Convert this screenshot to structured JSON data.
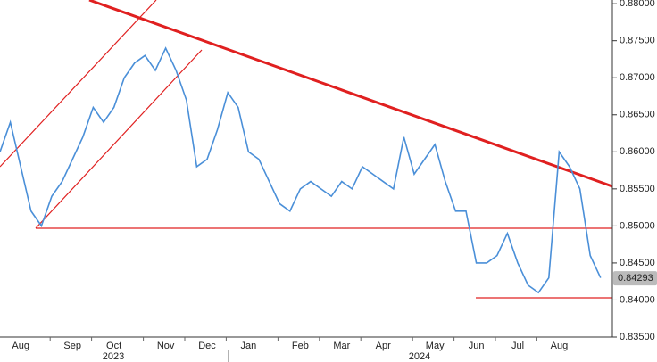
{
  "chart_data": {
    "type": "line",
    "categories": [
      null,
      null,
      "Aug",
      null,
      null,
      null,
      null,
      "Sep",
      null,
      null,
      null,
      "Oct",
      null,
      null,
      null,
      null,
      "Nov",
      null,
      null,
      null,
      "Dec",
      null,
      null,
      null,
      "Jan",
      null,
      null,
      null,
      null,
      "Feb",
      null,
      null,
      null,
      "Mar",
      null,
      null,
      null,
      "Apr",
      null,
      null,
      null,
      null,
      "May",
      null,
      null,
      null,
      "Jun",
      null,
      null,
      null,
      "Jul",
      null,
      null,
      null,
      "Aug",
      null,
      null,
      null,
      null
    ],
    "series": [
      {
        "color": "#4a8fd8",
        "values": [
          0.86,
          0.864,
          0.858,
          0.852,
          0.85,
          0.854,
          0.856,
          0.859,
          0.862,
          0.866,
          0.864,
          0.866,
          0.87,
          0.872,
          0.873,
          0.871,
          0.874,
          0.871,
          0.867,
          0.858,
          0.859,
          0.863,
          0.868,
          0.866,
          0.86,
          0.859,
          0.856,
          0.853,
          0.852,
          0.855,
          0.856,
          0.855,
          0.854,
          0.856,
          0.855,
          0.858,
          0.857,
          0.856,
          0.855,
          0.862,
          0.857,
          0.859,
          0.861,
          0.856,
          0.852,
          0.852,
          0.845,
          0.845,
          0.846,
          0.849,
          0.845,
          0.842,
          0.841,
          0.843,
          0.86,
          0.858,
          0.855,
          0.846,
          0.843
        ]
      }
    ],
    "year_labels": [
      "2023",
      "2024"
    ],
    "last_price": 0.84293,
    "ylim": [
      0.835,
      0.8805
    ],
    "yticks": [
      {
        "value": 0.835,
        "label": "0.83500"
      },
      {
        "value": 0.84,
        "label": "0.84000"
      },
      {
        "value": 0.845,
        "label": "0.84500"
      },
      {
        "value": 0.85,
        "label": "0.85000"
      },
      {
        "value": 0.855,
        "label": "0.85500"
      },
      {
        "value": 0.86,
        "label": "0.86000"
      },
      {
        "value": 0.865,
        "label": "0.86500"
      },
      {
        "value": 0.87,
        "label": "0.87000"
      },
      {
        "value": 0.875,
        "label": "0.87500"
      },
      {
        "value": 0.88,
        "label": "0.88000"
      }
    ],
    "y_axis_side": "right",
    "grid": false
  }
}
